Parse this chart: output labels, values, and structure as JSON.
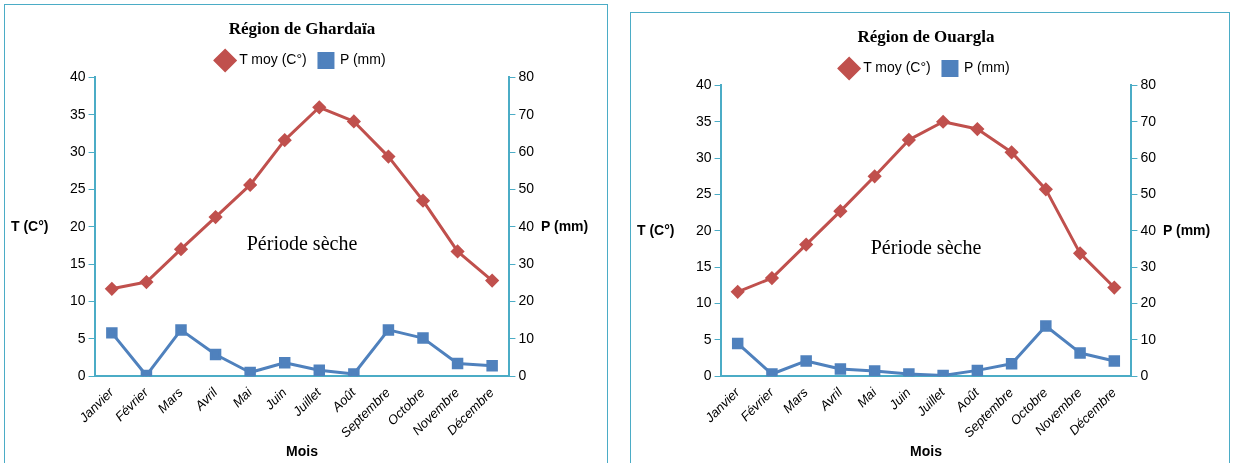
{
  "chart_data": [
    {
      "type": "line",
      "title": "Région de Ghardaïa",
      "xlabel": "Mois",
      "ylabel": "T (C°)",
      "y2label": "P (mm)",
      "categories": [
        "Janvier",
        "Février",
        "Mars",
        "Avril",
        "Mai",
        "Juin",
        "Juillet",
        "Août",
        "Septembre",
        "Octobre",
        "Novembre",
        "Décembre"
      ],
      "series": [
        {
          "name": "T moy (C°)",
          "color": "#c0504d",
          "marker": "diamond",
          "values": [
            11.7,
            12.6,
            17,
            21.3,
            25.6,
            31.6,
            36,
            34.1,
            29.4,
            23.5,
            16.7,
            12.8
          ]
        },
        {
          "name": "P (mm)",
          "color": "#4f81bd",
          "marker": "square",
          "axis": "y2",
          "values": [
            11.6,
            0.2,
            12.4,
            5.8,
            1,
            3.6,
            1.6,
            0.6,
            12.4,
            10.2,
            3.4,
            2.8
          ]
        }
      ],
      "ylim": [
        0,
        40
      ],
      "yticks": [
        0,
        5,
        10,
        15,
        20,
        25,
        30,
        35,
        40
      ],
      "y2lim": [
        0,
        80
      ],
      "y2ticks": [
        0,
        10,
        20,
        30,
        40,
        50,
        60,
        70,
        80
      ],
      "annotations": [
        "Période sèche"
      ],
      "legend": "top",
      "grid": false
    },
    {
      "type": "line",
      "title": "Région de Ouargla",
      "xlabel": "Mois",
      "ylabel": "T (C°)",
      "y2label": "P (mm)",
      "categories": [
        "Janvier",
        "Février",
        "Mars",
        "Avril",
        "Mai",
        "Juin",
        "Juillet",
        "Août",
        "Septembre",
        "Octobre",
        "Novembre",
        "Décembre"
      ],
      "series": [
        {
          "name": "T moy (C°)",
          "color": "#c0504d",
          "marker": "diamond",
          "values": [
            11.6,
            13.5,
            18.1,
            22.7,
            27.5,
            32.5,
            35,
            34,
            30.8,
            25.7,
            16.9,
            12.2
          ]
        },
        {
          "name": "P (mm)",
          "color": "#4f81bd",
          "marker": "square",
          "axis": "y2",
          "values": [
            9,
            0.6,
            4.2,
            2,
            1.4,
            0.6,
            0.2,
            1.6,
            3.4,
            13.8,
            6.4,
            4.2
          ]
        }
      ],
      "ylim": [
        0,
        40
      ],
      "yticks": [
        0,
        5,
        10,
        15,
        20,
        25,
        30,
        35,
        40
      ],
      "y2lim": [
        0,
        80
      ],
      "y2ticks": [
        0,
        10,
        20,
        30,
        40,
        50,
        60,
        70,
        80
      ],
      "annotations": [
        "Période sèche"
      ],
      "legend": "top",
      "grid": false
    }
  ]
}
